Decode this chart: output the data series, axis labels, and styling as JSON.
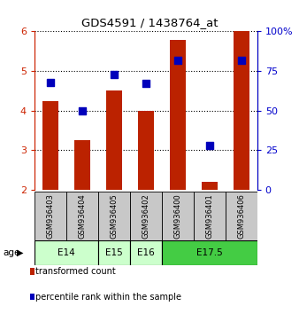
{
  "title": "GDS4591 / 1438764_at",
  "samples": [
    "GSM936403",
    "GSM936404",
    "GSM936405",
    "GSM936402",
    "GSM936400",
    "GSM936401",
    "GSM936406"
  ],
  "red_values": [
    4.25,
    3.25,
    4.5,
    4.0,
    5.78,
    2.2,
    6.0
  ],
  "blue_values": [
    68,
    50,
    73,
    67,
    82,
    28,
    82
  ],
  "ylim_left": [
    2,
    6
  ],
  "ylim_right": [
    0,
    100
  ],
  "yticks_left": [
    2,
    3,
    4,
    5,
    6
  ],
  "yticks_right": [
    0,
    25,
    50,
    75,
    100
  ],
  "age_groups": [
    {
      "label": "E14",
      "start": 0,
      "end": 1,
      "color": "#ccffcc"
    },
    {
      "label": "E15",
      "start": 2,
      "end": 2,
      "color": "#ccffcc"
    },
    {
      "label": "E16",
      "start": 3,
      "end": 3,
      "color": "#ccffcc"
    },
    {
      "label": "E17.5",
      "start": 4,
      "end": 6,
      "color": "#44dd44"
    }
  ],
  "bar_color": "#bb2200",
  "dot_color": "#0000bb",
  "bar_width": 0.5,
  "dot_size": 40,
  "bar_bottom": 2.0,
  "sample_bg": "#c8c8c8",
  "e14_color": "#ccffcc",
  "e175_color": "#44cc44",
  "legend_labels": [
    "transformed count",
    "percentile rank within the sample"
  ],
  "left_tick_color": "#cc2200",
  "right_tick_color": "#0000cc"
}
